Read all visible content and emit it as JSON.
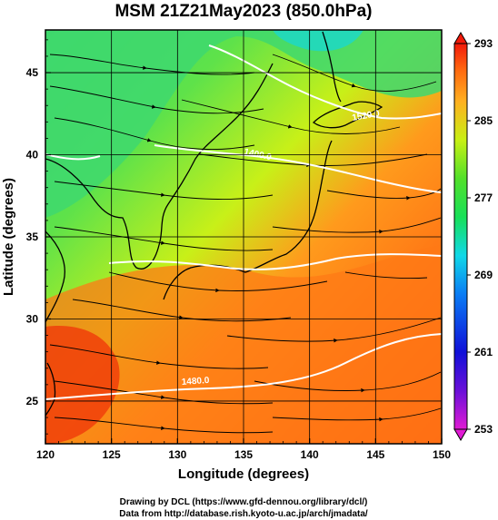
{
  "title": "MSM 21Z21May2023 (850.0hPa)",
  "credits": [
    "Drawing by DCL (https://www.gfd-dennou.org/library/dcl/)",
    "Data from http://database.rish.kyoto-u.ac.jp/arch/jmadata/"
  ],
  "chart_data": {
    "type": "heatmap",
    "title": "MSM 21Z21May2023 (850.0hPa)",
    "xlabel": "Longitude (degrees)",
    "ylabel": "Latitude  (degrees)",
    "xlim": [
      120,
      150
    ],
    "ylim": [
      22.4,
      47.6
    ],
    "xticks": [
      120,
      125,
      130,
      135,
      140,
      145,
      150
    ],
    "yticks": [
      25,
      30,
      35,
      40,
      45
    ],
    "grid": true,
    "colorbar": {
      "min": 253,
      "max": 293,
      "ticks": [
        253,
        261,
        269,
        277,
        285,
        293
      ],
      "colors": [
        "#e01bd4",
        "#1010d8",
        "#0a7cf4",
        "#10d8e8",
        "#18e058",
        "#52e02a",
        "#c8f014",
        "#ffb020",
        "#ff6a10",
        "#f21a0a"
      ]
    },
    "contour_labels": [
      {
        "text": "1400.0",
        "lon": 139.5,
        "lat": 40.9
      },
      {
        "text": "1520.0",
        "lon": 146.5,
        "lat": 43.3
      },
      {
        "text": "1480.0",
        "lon": 131.8,
        "lat": 25.9
      }
    ]
  }
}
